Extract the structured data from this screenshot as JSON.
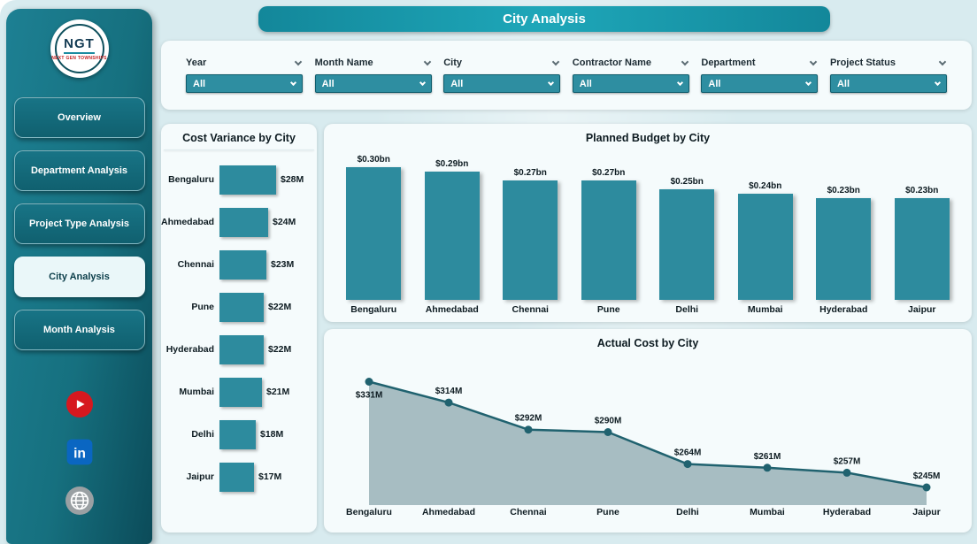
{
  "app": {
    "title": "City Analysis"
  },
  "sidebar": {
    "logo": {
      "text": "NGT",
      "subtext": "NEXT GEN TOWNSHIPS"
    },
    "nav": [
      {
        "label": "Overview",
        "active": false
      },
      {
        "label": "Department Analysis",
        "active": false
      },
      {
        "label": "Project Type Analysis",
        "active": false
      },
      {
        "label": "City Analysis",
        "active": true
      },
      {
        "label": "Month Analysis",
        "active": false
      }
    ],
    "social": [
      {
        "name": "youtube"
      },
      {
        "name": "linkedin"
      },
      {
        "name": "website"
      }
    ]
  },
  "filters": [
    {
      "label": "Year",
      "value": "All"
    },
    {
      "label": "Month Name",
      "value": "All"
    },
    {
      "label": "City",
      "value": "All"
    },
    {
      "label": "Contractor Name",
      "value": "All"
    },
    {
      "label": "Department",
      "value": "All"
    },
    {
      "label": "Project Status",
      "value": "All"
    }
  ],
  "chart_data": [
    {
      "type": "bar",
      "orientation": "horizontal",
      "title": "Cost Variance by City",
      "categories": [
        "Bengaluru",
        "Ahmedabad",
        "Chennai",
        "Pune",
        "Hyderabad",
        "Mumbai",
        "Delhi",
        "Jaipur"
      ],
      "values": [
        28,
        24,
        23,
        22,
        22,
        21,
        18,
        17
      ],
      "labels": [
        "$28M",
        "$24M",
        "$23M",
        "$22M",
        "$22M",
        "$21M",
        "$18M",
        "$17M"
      ],
      "xlabel": "",
      "ylabel": "",
      "xlim": [
        0,
        28
      ],
      "grid": false,
      "legend": false
    },
    {
      "type": "bar",
      "orientation": "vertical",
      "title": "Planned Budget by City",
      "categories": [
        "Bengaluru",
        "Ahmedabad",
        "Chennai",
        "Pune",
        "Delhi",
        "Mumbai",
        "Hyderabad",
        "Jaipur"
      ],
      "values": [
        0.3,
        0.29,
        0.27,
        0.27,
        0.25,
        0.24,
        0.23,
        0.23
      ],
      "labels": [
        "$0.30bn",
        "$0.29bn",
        "$0.27bn",
        "$0.27bn",
        "$0.25bn",
        "$0.24bn",
        "$0.23bn",
        "$0.23bn"
      ],
      "xlabel": "",
      "ylabel": "",
      "ylim": [
        0,
        0.3
      ],
      "grid": false,
      "legend": false
    },
    {
      "type": "area",
      "title": "Actual Cost by City",
      "categories": [
        "Bengaluru",
        "Ahmedabad",
        "Chennai",
        "Pune",
        "Delhi",
        "Mumbai",
        "Hyderabad",
        "Jaipur"
      ],
      "values": [
        331,
        314,
        292,
        290,
        264,
        261,
        257,
        245
      ],
      "labels": [
        "$331M",
        "$314M",
        "$292M",
        "$290M",
        "$264M",
        "$261M",
        "$257M",
        "$245M"
      ],
      "xlabel": "",
      "ylabel": "",
      "ylim": [
        230,
        340
      ],
      "grid": false,
      "legend": false
    }
  ],
  "colors": {
    "accent_teal": "#2d8b9e",
    "banner_teal": "#1ea7b9",
    "sidebar_teal": "#16707f",
    "area_fill": "#a7bdc2",
    "line_teal": "#20626f",
    "youtube_red": "#d6181f",
    "linkedin_blue": "#0a66c2",
    "globe_gray": "#9aa0a3",
    "background": "#d8ebef"
  }
}
